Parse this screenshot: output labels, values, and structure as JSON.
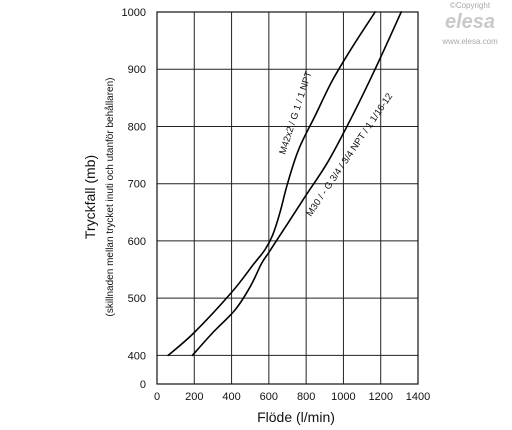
{
  "brand": {
    "copyright": "©Copyright",
    "logo": "elesa",
    "url": "www.elesa.com"
  },
  "chart_data": {
    "type": "line",
    "xlabel": "Flöde (l/min)",
    "ylabel": "Tryckfall (mb)",
    "ylabel_sub": "(skillnaden mellan trycket inuti och utanför behållaren)",
    "xlim": [
      0,
      1400
    ],
    "ylim": [
      350,
      1000
    ],
    "x_ticks": [
      "0",
      "200",
      "400",
      "600",
      "800",
      "1000",
      "1200",
      "1400"
    ],
    "y_ticks": [
      "400",
      "500",
      "600",
      "700",
      "800",
      "900",
      "1000"
    ],
    "grid": true,
    "legend": "none",
    "series": [
      {
        "name": "M42x2 / G 1 / 1 NPT",
        "x": [
          60,
          200,
          400,
          520,
          580,
          620,
          660,
          700,
          760,
          850,
          940,
          1050,
          1170
        ],
        "y": [
          400,
          440,
          510,
          560,
          585,
          610,
          650,
          700,
          760,
          820,
          880,
          940,
          1000
        ]
      },
      {
        "name": "M30 / - G 3/4 / 3/4 NPT / 1 1/16-12",
        "x": [
          190,
          300,
          420,
          500,
          560,
          600,
          640,
          700,
          800,
          920,
          1050,
          1170,
          1310
        ],
        "y": [
          400,
          440,
          480,
          520,
          560,
          580,
          600,
          630,
          680,
          740,
          820,
          900,
          1000
        ]
      }
    ]
  }
}
